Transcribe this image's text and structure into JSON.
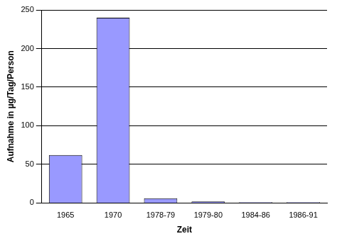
{
  "chart_data": {
    "type": "bar",
    "x_label": "Zeit",
    "y_label": "Aufnahme in µg/Tag/Person",
    "categories": [
      "1965",
      "1970",
      "1978-79",
      "1979-80",
      "1984-86",
      "1986-91"
    ],
    "values": [
      62,
      240,
      6,
      2,
      1,
      1
    ],
    "color": "#9999ff",
    "ylim": [
      0,
      250
    ],
    "yticks": [
      0,
      50,
      100,
      150,
      200,
      250
    ],
    "grid": true
  }
}
